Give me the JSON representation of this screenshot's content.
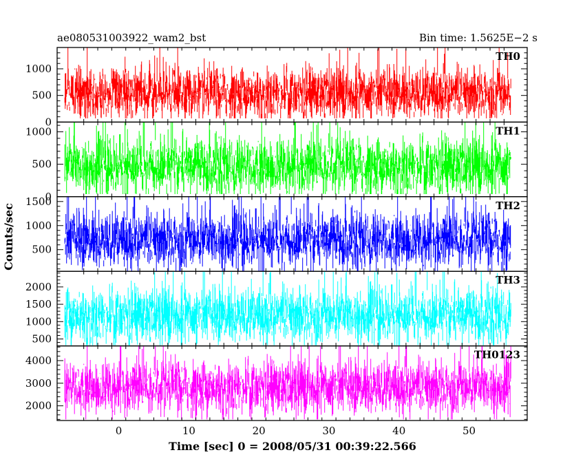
{
  "chart_data": {
    "type": "line",
    "title": "ae080531003922_wam2_bst",
    "subtitle": "Bin time: 1.5625E−2 s",
    "xlabel": "Time [sec] 0 = 2008/05/31 00:39:22.566",
    "ylabel": "Counts/sec",
    "xlim": [
      -8.8,
      58.3
    ],
    "x_ticks": [
      0,
      10,
      20,
      30,
      40,
      50
    ],
    "x_range": [
      -7.7,
      56.0
    ],
    "bin_time": 0.015625,
    "panels": [
      {
        "name": "TH0",
        "color": "#ff0000",
        "ylim": [
          0,
          1400
        ],
        "y_ticks": [
          0,
          500,
          1000
        ],
        "mean": 540,
        "spread": 230,
        "min": 70,
        "max": 1400
      },
      {
        "name": "TH1",
        "color": "#00ff00",
        "ylim": [
          0,
          1150
        ],
        "y_ticks": [
          0,
          500,
          1000
        ],
        "mean": 470,
        "spread": 210,
        "min": 40,
        "max": 1150
      },
      {
        "name": "TH2",
        "color": "#0000ff",
        "ylim": [
          50,
          1600
        ],
        "y_ticks": [
          500,
          1000,
          1500
        ],
        "mean": 700,
        "spread": 280,
        "min": 60,
        "max": 1600
      },
      {
        "name": "TH3",
        "color": "#00ffff",
        "ylim": [
          300,
          2450
        ],
        "y_ticks": [
          500,
          1000,
          1500,
          2000
        ],
        "mean": 1180,
        "spread": 380,
        "min": 320,
        "max": 2450
      },
      {
        "name": "TH0123",
        "color": "#ff00ff",
        "ylim": [
          1350,
          4650
        ],
        "y_ticks": [
          2000,
          3000,
          4000
        ],
        "mean": 2820,
        "spread": 560,
        "min": 1400,
        "max": 4650
      }
    ]
  }
}
